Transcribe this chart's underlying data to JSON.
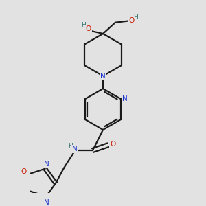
{
  "bg_color": "#e2e2e2",
  "bond_color": "#1a1a1a",
  "bond_width": 1.6,
  "atom_colors": {
    "C": "#1a1a1a",
    "N": "#1a35cc",
    "O": "#cc1a00",
    "H": "#2e7070"
  },
  "font_size": 7.5
}
